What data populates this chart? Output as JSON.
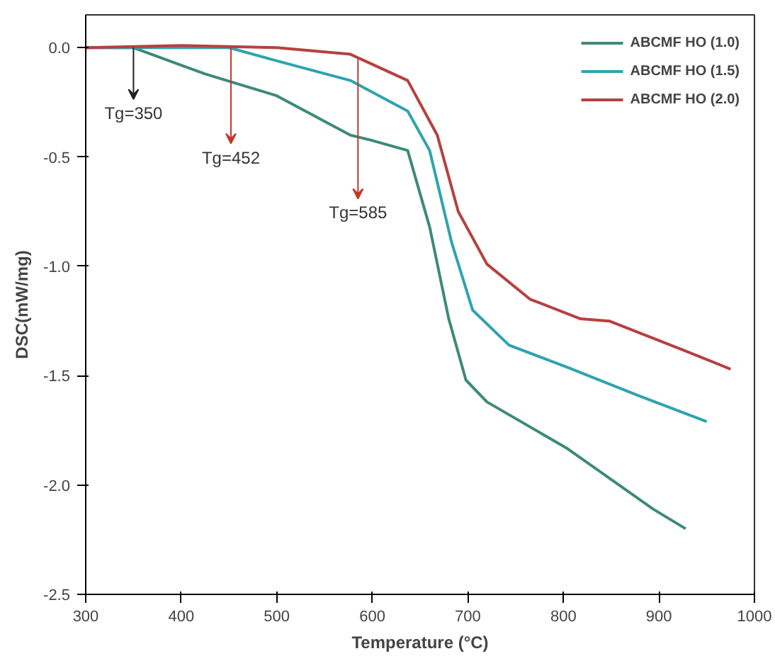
{
  "chart_data": {
    "type": "line",
    "xlabel": "Temperature (°C)",
    "ylabel": "DSC(mW/mg)",
    "xlim": [
      300,
      1000
    ],
    "ylim": [
      -2.5,
      0.15
    ],
    "xticks": [
      300,
      400,
      500,
      600,
      700,
      800,
      900,
      1000
    ],
    "yticks": [
      {
        "value": 0,
        "label": "0.0"
      },
      {
        "value": -0.5,
        "label": "-0.5"
      },
      {
        "value": -1,
        "label": "-1.0"
      },
      {
        "value": -1.5,
        "label": "-1.5"
      },
      {
        "value": -2,
        "label": "-2.0"
      },
      {
        "value": -2.5,
        "label": "-2.5"
      }
    ],
    "grid": false,
    "legend": "top right",
    "marker": "none",
    "line_style": "solid",
    "series": [
      {
        "name": "ABCMF HO (1.0)",
        "color": "#3d8a7a",
        "x": [
          300,
          350,
          425,
          500,
          577,
          596,
          637,
          660,
          680,
          698,
          720,
          803,
          894,
          928
        ],
        "values": [
          0,
          0,
          -0.12,
          -0.22,
          -0.4,
          -0.42,
          -0.47,
          -0.82,
          -1.24,
          -1.52,
          -1.62,
          -1.83,
          -2.11,
          -2.2
        ]
      },
      {
        "name": "ABCMF HO (1.5)",
        "color": "#2fa3b0",
        "x": [
          300,
          450,
          500,
          577,
          637,
          660,
          683,
          705,
          743,
          803,
          878,
          950
        ],
        "values": [
          0,
          0,
          -0.06,
          -0.15,
          -0.29,
          -0.47,
          -0.89,
          -1.2,
          -1.36,
          -1.46,
          -1.59,
          -1.71
        ]
      },
      {
        "name": "ABCMF HO (2.0)",
        "color": "#b5413f",
        "x": [
          300,
          400,
          500,
          577,
          637,
          668,
          690,
          720,
          765,
          818,
          848,
          924,
          975
        ],
        "values": [
          0,
          0.01,
          0,
          -0.03,
          -0.15,
          -0.4,
          -0.75,
          -0.99,
          -1.15,
          -1.24,
          -1.25,
          -1.38,
          -1.47
        ]
      }
    ],
    "annotations": [
      {
        "text": "Tg=350",
        "x": 350,
        "y": 0
      },
      {
        "text": "Tg=452",
        "x": 452,
        "y": 0
      },
      {
        "text": "Tg=585",
        "x": 585,
        "y": -0.05
      }
    ]
  }
}
